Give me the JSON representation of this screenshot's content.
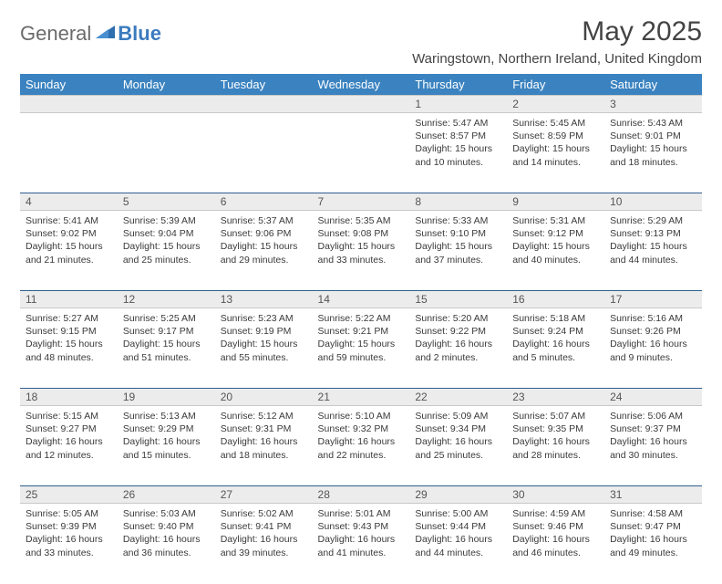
{
  "brand": {
    "part1": "General",
    "part2": "Blue"
  },
  "title": "May 2025",
  "location": "Waringstown, Northern Ireland, United Kingdom",
  "colors": {
    "header_bg": "#3b83c0",
    "header_text": "#ffffff",
    "daynum_bg": "#ececec",
    "row_divider": "#2f5f8f",
    "cell_border": "#c9c9c9",
    "brand_gray": "#6b6b6b",
    "brand_blue": "#3b7bbf"
  },
  "weekdays": [
    "Sunday",
    "Monday",
    "Tuesday",
    "Wednesday",
    "Thursday",
    "Friday",
    "Saturday"
  ],
  "weeks": [
    {
      "nums": [
        "",
        "",
        "",
        "",
        "1",
        "2",
        "3"
      ],
      "cells": [
        null,
        null,
        null,
        null,
        {
          "sunrise": "5:47 AM",
          "sunset": "8:57 PM",
          "daylight": "15 hours and 10 minutes."
        },
        {
          "sunrise": "5:45 AM",
          "sunset": "8:59 PM",
          "daylight": "15 hours and 14 minutes."
        },
        {
          "sunrise": "5:43 AM",
          "sunset": "9:01 PM",
          "daylight": "15 hours and 18 minutes."
        }
      ]
    },
    {
      "nums": [
        "4",
        "5",
        "6",
        "7",
        "8",
        "9",
        "10"
      ],
      "cells": [
        {
          "sunrise": "5:41 AM",
          "sunset": "9:02 PM",
          "daylight": "15 hours and 21 minutes."
        },
        {
          "sunrise": "5:39 AM",
          "sunset": "9:04 PM",
          "daylight": "15 hours and 25 minutes."
        },
        {
          "sunrise": "5:37 AM",
          "sunset": "9:06 PM",
          "daylight": "15 hours and 29 minutes."
        },
        {
          "sunrise": "5:35 AM",
          "sunset": "9:08 PM",
          "daylight": "15 hours and 33 minutes."
        },
        {
          "sunrise": "5:33 AM",
          "sunset": "9:10 PM",
          "daylight": "15 hours and 37 minutes."
        },
        {
          "sunrise": "5:31 AM",
          "sunset": "9:12 PM",
          "daylight": "15 hours and 40 minutes."
        },
        {
          "sunrise": "5:29 AM",
          "sunset": "9:13 PM",
          "daylight": "15 hours and 44 minutes."
        }
      ]
    },
    {
      "nums": [
        "11",
        "12",
        "13",
        "14",
        "15",
        "16",
        "17"
      ],
      "cells": [
        {
          "sunrise": "5:27 AM",
          "sunset": "9:15 PM",
          "daylight": "15 hours and 48 minutes."
        },
        {
          "sunrise": "5:25 AM",
          "sunset": "9:17 PM",
          "daylight": "15 hours and 51 minutes."
        },
        {
          "sunrise": "5:23 AM",
          "sunset": "9:19 PM",
          "daylight": "15 hours and 55 minutes."
        },
        {
          "sunrise": "5:22 AM",
          "sunset": "9:21 PM",
          "daylight": "15 hours and 59 minutes."
        },
        {
          "sunrise": "5:20 AM",
          "sunset": "9:22 PM",
          "daylight": "16 hours and 2 minutes."
        },
        {
          "sunrise": "5:18 AM",
          "sunset": "9:24 PM",
          "daylight": "16 hours and 5 minutes."
        },
        {
          "sunrise": "5:16 AM",
          "sunset": "9:26 PM",
          "daylight": "16 hours and 9 minutes."
        }
      ]
    },
    {
      "nums": [
        "18",
        "19",
        "20",
        "21",
        "22",
        "23",
        "24"
      ],
      "cells": [
        {
          "sunrise": "5:15 AM",
          "sunset": "9:27 PM",
          "daylight": "16 hours and 12 minutes."
        },
        {
          "sunrise": "5:13 AM",
          "sunset": "9:29 PM",
          "daylight": "16 hours and 15 minutes."
        },
        {
          "sunrise": "5:12 AM",
          "sunset": "9:31 PM",
          "daylight": "16 hours and 18 minutes."
        },
        {
          "sunrise": "5:10 AM",
          "sunset": "9:32 PM",
          "daylight": "16 hours and 22 minutes."
        },
        {
          "sunrise": "5:09 AM",
          "sunset": "9:34 PM",
          "daylight": "16 hours and 25 minutes."
        },
        {
          "sunrise": "5:07 AM",
          "sunset": "9:35 PM",
          "daylight": "16 hours and 28 minutes."
        },
        {
          "sunrise": "5:06 AM",
          "sunset": "9:37 PM",
          "daylight": "16 hours and 30 minutes."
        }
      ]
    },
    {
      "nums": [
        "25",
        "26",
        "27",
        "28",
        "29",
        "30",
        "31"
      ],
      "cells": [
        {
          "sunrise": "5:05 AM",
          "sunset": "9:39 PM",
          "daylight": "16 hours and 33 minutes."
        },
        {
          "sunrise": "5:03 AM",
          "sunset": "9:40 PM",
          "daylight": "16 hours and 36 minutes."
        },
        {
          "sunrise": "5:02 AM",
          "sunset": "9:41 PM",
          "daylight": "16 hours and 39 minutes."
        },
        {
          "sunrise": "5:01 AM",
          "sunset": "9:43 PM",
          "daylight": "16 hours and 41 minutes."
        },
        {
          "sunrise": "5:00 AM",
          "sunset": "9:44 PM",
          "daylight": "16 hours and 44 minutes."
        },
        {
          "sunrise": "4:59 AM",
          "sunset": "9:46 PM",
          "daylight": "16 hours and 46 minutes."
        },
        {
          "sunrise": "4:58 AM",
          "sunset": "9:47 PM",
          "daylight": "16 hours and 49 minutes."
        }
      ]
    }
  ],
  "labels": {
    "sunrise": "Sunrise:",
    "sunset": "Sunset:",
    "daylight": "Daylight:"
  }
}
